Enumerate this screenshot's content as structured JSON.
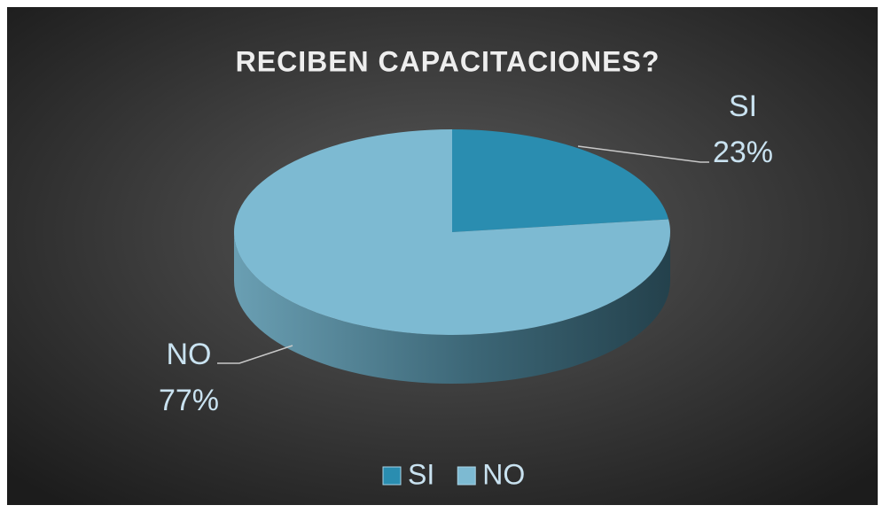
{
  "chart_data": {
    "type": "pie",
    "title": "RECIBEN CAPACITACIONES?",
    "categories": [
      "SI",
      "NO"
    ],
    "values": [
      23,
      77
    ],
    "value_labels": [
      "23%",
      "77%"
    ],
    "colors": [
      "#2a8db0",
      "#7dbad2"
    ],
    "legend": "bottom"
  }
}
